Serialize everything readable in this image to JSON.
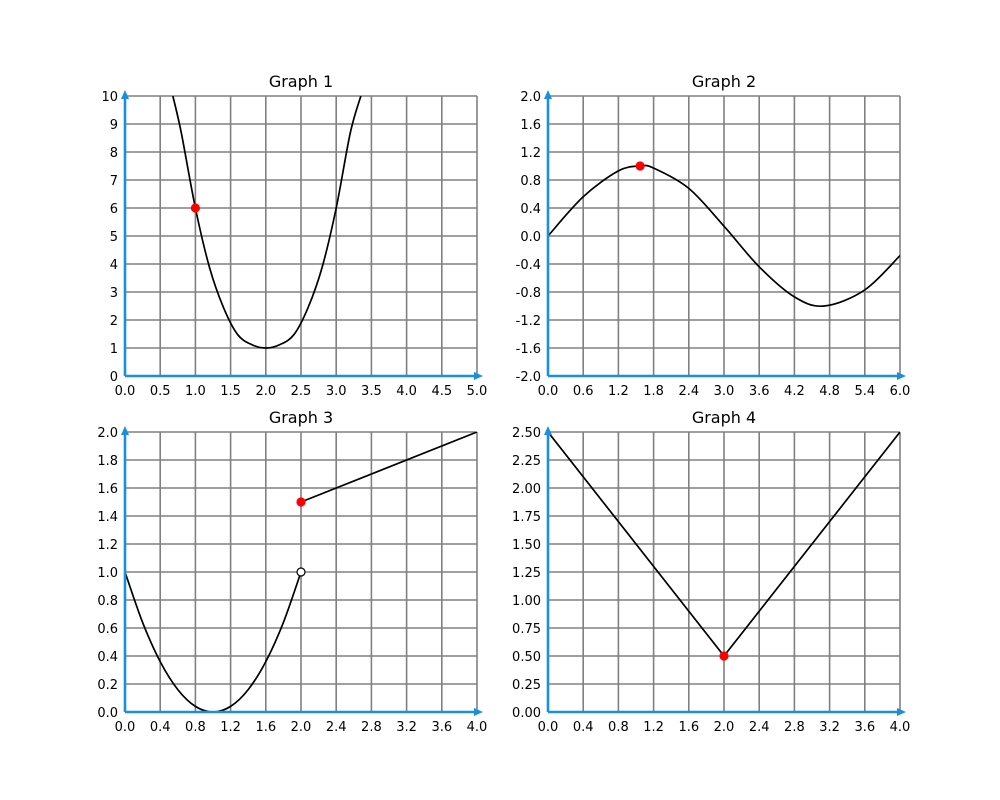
{
  "colors": {
    "axis": "#1a8fe0",
    "grid": "#808080",
    "curve": "#000000",
    "point": "#ff0000",
    "open_point_fill": "#ffffff"
  },
  "chart_data": [
    {
      "type": "line",
      "title": "Graph 1",
      "xlim": [
        0,
        5
      ],
      "ylim": [
        0,
        10
      ],
      "xticks": [
        "0.0",
        "0.5",
        "1.0",
        "1.5",
        "2.0",
        "2.5",
        "3.0",
        "3.5",
        "4.0",
        "4.5",
        "5.0"
      ],
      "yticks": [
        "0",
        "1",
        "2",
        "3",
        "4",
        "5",
        "6",
        "7",
        "8",
        "9",
        "10"
      ],
      "grid": true,
      "series": [
        {
          "x": [
            0.68,
            0.8,
            1.0,
            1.2,
            1.4,
            1.6,
            1.8,
            2.0,
            2.2,
            2.4,
            2.6,
            2.8,
            3.0,
            3.2,
            3.35
          ],
          "y": [
            10.0,
            8.68,
            6.0,
            3.88,
            2.44,
            1.48,
            1.12,
            1.0,
            1.12,
            1.48,
            2.44,
            3.88,
            6.0,
            8.68,
            10.0
          ],
          "smooth": true
        }
      ],
      "points": [
        {
          "x": 1.0,
          "y": 6.0,
          "filled": true
        }
      ]
    },
    {
      "type": "line",
      "title": "Graph 2",
      "xlim": [
        0,
        6
      ],
      "ylim": [
        -2,
        2
      ],
      "xticks": [
        "0.0",
        "0.6",
        "1.2",
        "1.8",
        "2.4",
        "3.0",
        "3.6",
        "4.2",
        "4.8",
        "5.4",
        "6.0"
      ],
      "yticks": [
        "-2.0",
        "-1.6",
        "-1.2",
        "-0.8",
        "-0.4",
        "0.0",
        "0.4",
        "0.8",
        "1.2",
        "1.6",
        "2.0"
      ],
      "grid": true,
      "series": [
        {
          "x": [
            0,
            0.6,
            1.2,
            1.57,
            1.8,
            2.4,
            3.0,
            3.6,
            4.2,
            4.71,
            5.4,
            6.0
          ],
          "y": [
            0,
            0.56,
            0.93,
            1.0,
            0.97,
            0.68,
            0.14,
            -0.44,
            -0.87,
            -1.0,
            -0.77,
            -0.28
          ],
          "smooth": true
        }
      ],
      "points": [
        {
          "x": 1.57,
          "y": 1.0,
          "filled": true
        }
      ]
    },
    {
      "type": "line",
      "title": "Graph 3",
      "xlim": [
        0,
        4
      ],
      "ylim": [
        0,
        2
      ],
      "xticks": [
        "0.0",
        "0.4",
        "0.8",
        "1.2",
        "1.6",
        "2.0",
        "2.4",
        "2.8",
        "3.2",
        "3.6",
        "4.0"
      ],
      "yticks": [
        "0.0",
        "0.2",
        "0.4",
        "0.6",
        "0.8",
        "1.0",
        "1.2",
        "1.4",
        "1.6",
        "1.8",
        "2.0"
      ],
      "grid": true,
      "series": [
        {
          "x": [
            0,
            0.2,
            0.4,
            0.6,
            0.8,
            1.0,
            1.2,
            1.4,
            1.6,
            1.8,
            2.0
          ],
          "y": [
            1.0,
            0.64,
            0.36,
            0.16,
            0.04,
            0.0,
            0.04,
            0.16,
            0.36,
            0.64,
            1.0
          ],
          "smooth": true
        },
        {
          "x": [
            2.0,
            4.0
          ],
          "y": [
            1.5,
            2.0
          ],
          "smooth": false
        }
      ],
      "points": [
        {
          "x": 2.0,
          "y": 1.5,
          "filled": true
        },
        {
          "x": 2.0,
          "y": 1.0,
          "filled": false
        }
      ]
    },
    {
      "type": "line",
      "title": "Graph 4",
      "xlim": [
        0,
        4
      ],
      "ylim": [
        0,
        2.5
      ],
      "xticks": [
        "0.0",
        "0.4",
        "0.8",
        "1.2",
        "1.6",
        "2.0",
        "2.4",
        "2.8",
        "3.2",
        "3.6",
        "4.0"
      ],
      "yticks": [
        "0.00",
        "0.25",
        "0.50",
        "0.75",
        "1.00",
        "1.25",
        "1.50",
        "1.75",
        "2.00",
        "2.25",
        "2.50"
      ],
      "grid": true,
      "series": [
        {
          "x": [
            0,
            2.0,
            4.0
          ],
          "y": [
            2.5,
            0.5,
            2.5
          ],
          "smooth": false
        }
      ],
      "points": [
        {
          "x": 2.0,
          "y": 0.5,
          "filled": true
        }
      ]
    }
  ]
}
